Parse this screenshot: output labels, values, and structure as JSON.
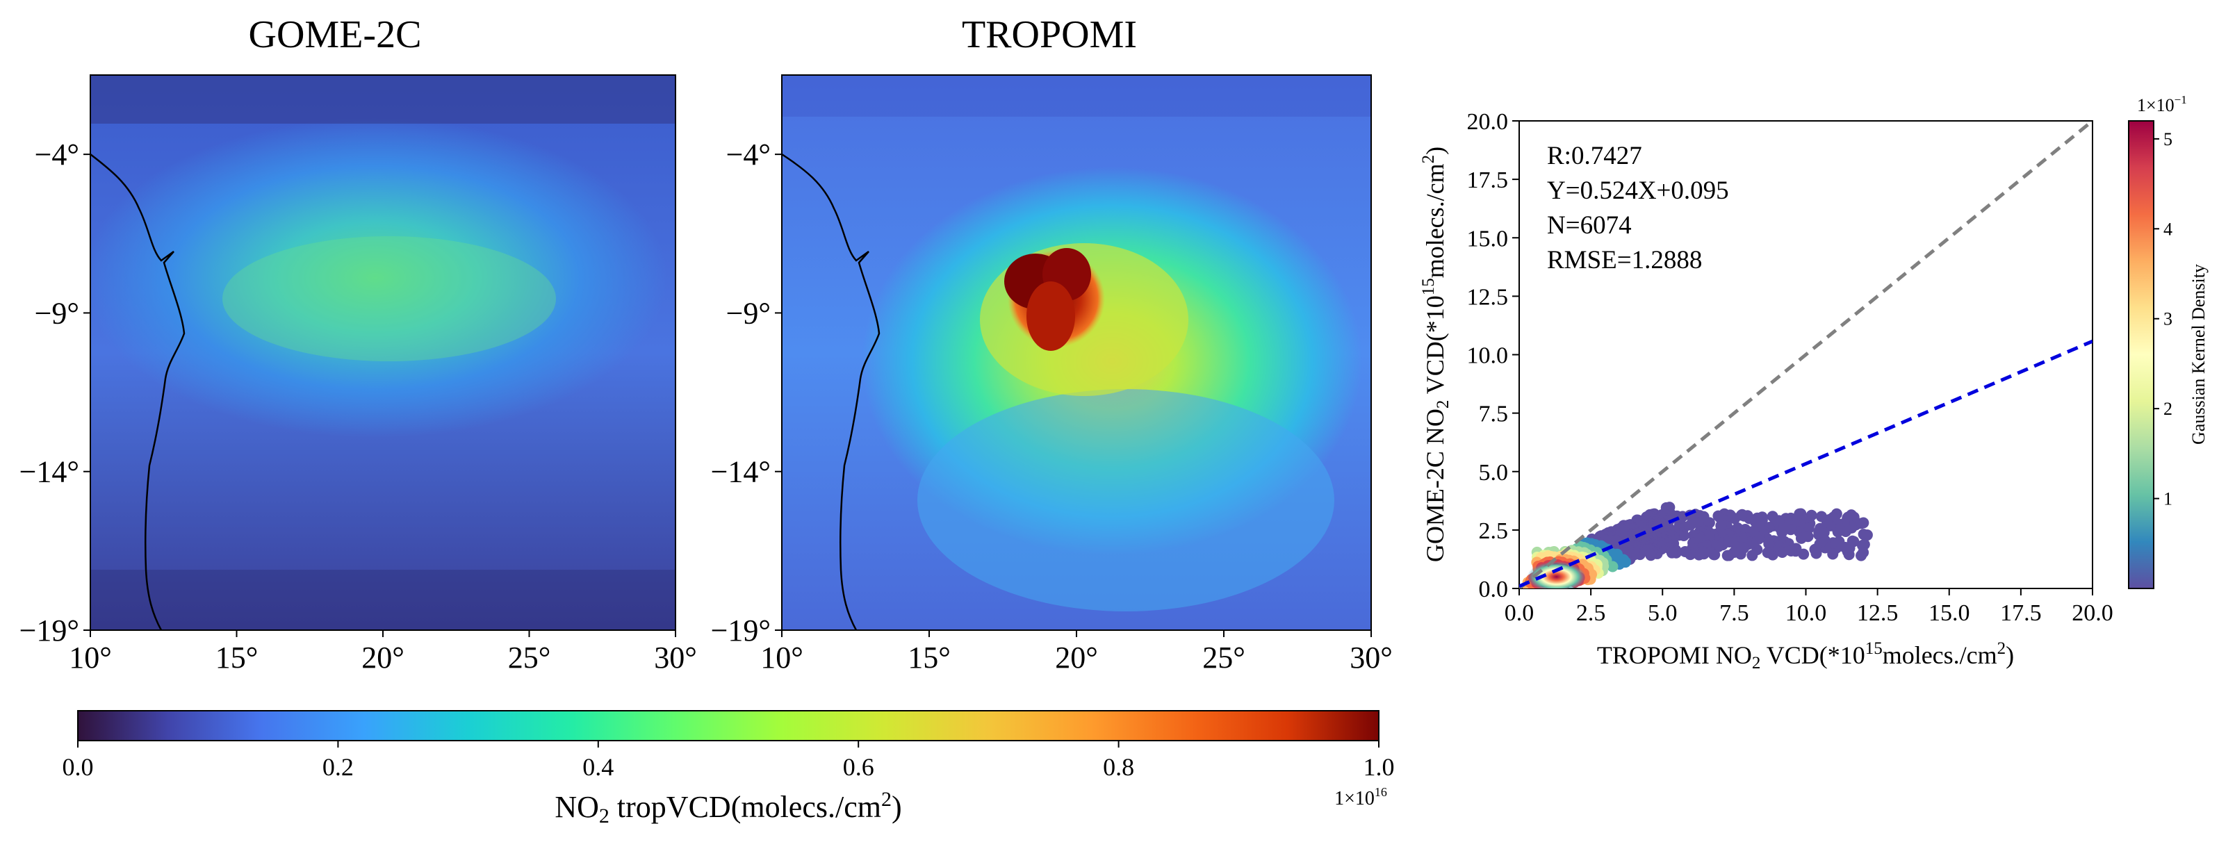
{
  "maps": {
    "left_title": "GOME-2C",
    "right_title": "TROPOMI",
    "x_ticks": [
      "10°",
      "15°",
      "20°",
      "25°",
      "30°"
    ],
    "y_ticks": [
      "−4°",
      "−9°",
      "−14°",
      "−19°"
    ],
    "lon_range": [
      10,
      30
    ],
    "lat_range": [
      -19,
      -1.5
    ]
  },
  "map_colorbar": {
    "colormap": "jet",
    "ticks": [
      "0.0",
      "0.2",
      "0.4",
      "0.6",
      "0.8",
      "1.0"
    ],
    "range": [
      0.0,
      1.0
    ],
    "scale_prefix": "1×10",
    "scale_exp": "16",
    "label_pre": "NO",
    "label_sub": "2",
    "label_mid": " tropVCD(molecs./cm",
    "label_sup": "2",
    "label_post": ")"
  },
  "scatter_colorbar": {
    "colormap": "Spectral_r",
    "label": "Gaussian Kernel Density",
    "ticks": [
      "1",
      "2",
      "3",
      "4",
      "5"
    ],
    "range": [
      0,
      5.2
    ],
    "scale_prefix": "1×10",
    "scale_exp": "−1"
  },
  "scatter": {
    "stats": [
      "R:0.7427",
      "Y=0.524X+0.095",
      "N=6074",
      "RMSE=1.2888"
    ],
    "x_ticks": [
      "0.0",
      "2.5",
      "5.0",
      "7.5",
      "10.0",
      "12.5",
      "15.0",
      "17.5",
      "20.0"
    ],
    "y_ticks": [
      "0.0",
      "2.5",
      "5.0",
      "7.5",
      "10.0",
      "12.5",
      "15.0",
      "17.5",
      "20.0"
    ],
    "xlabel": {
      "pre": "TROPOMI NO",
      "sub": "2",
      "mid": " VCD(*10",
      "sup": "15",
      "mid2": "molecs./cm",
      "sup2": "2",
      "post": ")"
    },
    "ylabel": {
      "pre": "GOME-2C NO",
      "sub": "2",
      "mid": " VCD(*10",
      "sup": "15",
      "mid2": "molecs./cm",
      "sup2": "2",
      "post": ")"
    }
  },
  "chart_data": {
    "type": "scatter",
    "xlim": [
      0,
      20
    ],
    "ylim": [
      0,
      20
    ],
    "reference_line": {
      "slope": 1,
      "intercept": 0,
      "color": "#808080",
      "style": "dashed"
    },
    "fit_line": {
      "slope": 0.524,
      "intercept": 0.095,
      "color": "#0000dd",
      "style": "dashed"
    },
    "R": 0.7427,
    "N": 6074,
    "RMSE": 1.2888,
    "point_cloud_summary": {
      "x_extent": [
        0.3,
        12.2
      ],
      "y_extent": [
        0.0,
        4.3
      ],
      "density_peak": [
        1.3,
        0.5
      ]
    }
  }
}
